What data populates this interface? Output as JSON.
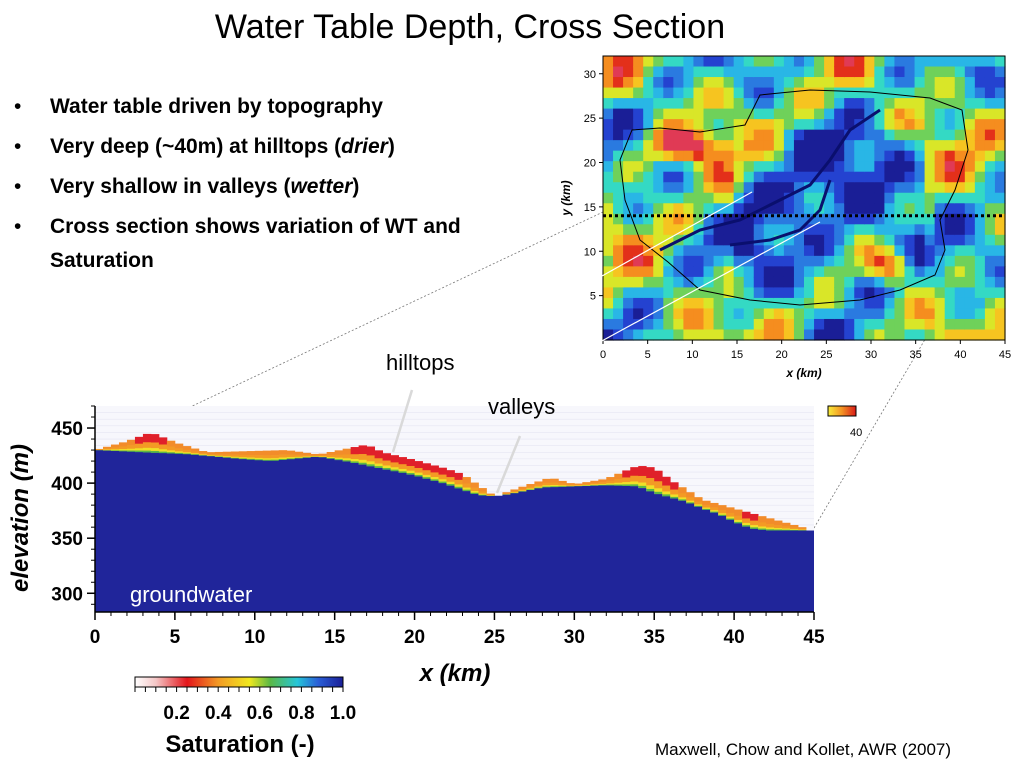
{
  "title": "Water Table Depth, Cross Section",
  "bullets": [
    {
      "pre": "Water table driven by topography",
      "em": "",
      "post": ""
    },
    {
      "pre": "Very deep (~40m) at hilltops (",
      "em": "drier",
      "post": ")"
    },
    {
      "pre": "Very shallow in valleys (",
      "em": "wetter",
      "post": ")"
    },
    {
      "pre": "Cross section shows variation of WT and Saturation",
      "em": "",
      "post": ""
    }
  ],
  "annotations": {
    "hilltops": "hilltops",
    "valleys": "valleys",
    "groundwater": "groundwater"
  },
  "citation": "Maxwell, Chow and Kollet, AWR (2007)",
  "colors": {
    "groundwater": "#20259a",
    "unsat": "#f7f7fc",
    "dashed_line": "#000000"
  },
  "chart_data": [
    {
      "type": "heatmap",
      "title": "",
      "xlabel": "x (km)",
      "ylabel": "y (km)",
      "xlim": [
        0,
        45
      ],
      "ylim": [
        0,
        32
      ],
      "x_ticks": [
        "0",
        "5",
        "10",
        "15",
        "20",
        "25",
        "30",
        "35",
        "40",
        "45"
      ],
      "y_ticks": [
        "5",
        "10",
        "15",
        "20",
        "25",
        "30"
      ],
      "cross_section_y": 14,
      "colorbar": {
        "max_label": "40"
      }
    },
    {
      "type": "area",
      "title": "",
      "xlabel": "x (km)",
      "ylabel": "elevation (m)",
      "xlim": [
        0,
        45
      ],
      "ylim": [
        283,
        470
      ],
      "x_ticks": [
        "0",
        "5",
        "10",
        "15",
        "20",
        "25",
        "30",
        "35",
        "40",
        "45"
      ],
      "y_ticks": [
        "300",
        "350",
        "400",
        "450"
      ],
      "series": [
        {
          "x": [
            0,
            3,
            6,
            9,
            10,
            11,
            14,
            16,
            18,
            20,
            22,
            24,
            25,
            26,
            28,
            30,
            32,
            34,
            35,
            37,
            38,
            39,
            40,
            41,
            42,
            43,
            45
          ],
          "y": [
            430,
            428,
            426,
            422,
            421,
            420,
            424,
            419,
            413,
            407,
            399,
            389,
            388,
            390,
            396,
            397,
            398,
            397,
            391,
            383,
            377,
            372,
            365,
            359,
            357,
            357,
            357
          ]
        },
        {
          "x": [
            0,
            2,
            3.5,
            5,
            7,
            12,
            14,
            16,
            17,
            18,
            20,
            22,
            23,
            25,
            27,
            28.5,
            30,
            32,
            34,
            35,
            36,
            38,
            45
          ],
          "y": [
            430,
            438,
            446,
            437,
            428,
            430,
            426,
            432,
            435,
            428,
            421,
            413,
            408,
            388,
            398,
            405,
            399,
            404,
            416,
            414,
            403,
            385,
            357
          ]
        }
      ],
      "colorbar": {
        "label": "Saturation (-)",
        "ticks": [
          "0.2",
          "0.4",
          "0.6",
          "0.8",
          "1.0"
        ]
      }
    }
  ]
}
